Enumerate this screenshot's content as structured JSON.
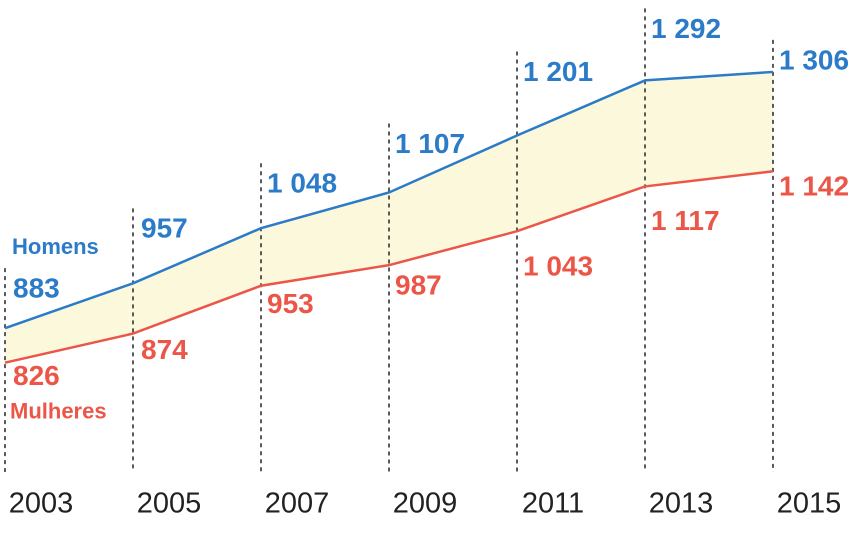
{
  "chart_data": {
    "type": "line",
    "categories": [
      "2003",
      "2005",
      "2007",
      "2009",
      "2011",
      "2013",
      "2015"
    ],
    "series": [
      {
        "name": "Homens",
        "color": "#2b7bc8",
        "values": [
          883,
          957,
          1048,
          1107,
          1201,
          1292,
          1306
        ],
        "value_labels": [
          "883",
          "957",
          "1 048",
          "1 107",
          "1 201",
          "1 292",
          "1 306"
        ]
      },
      {
        "name": "Mulheres",
        "color": "#eb5648",
        "values": [
          826,
          874,
          953,
          987,
          1043,
          1117,
          1142
        ],
        "value_labels": [
          "826",
          "874",
          "953",
          "987",
          "1 043",
          "1 117",
          "1 142"
        ]
      }
    ],
    "ylim": [
      700,
      1400
    ],
    "fill_between": "#fcf8dc"
  }
}
